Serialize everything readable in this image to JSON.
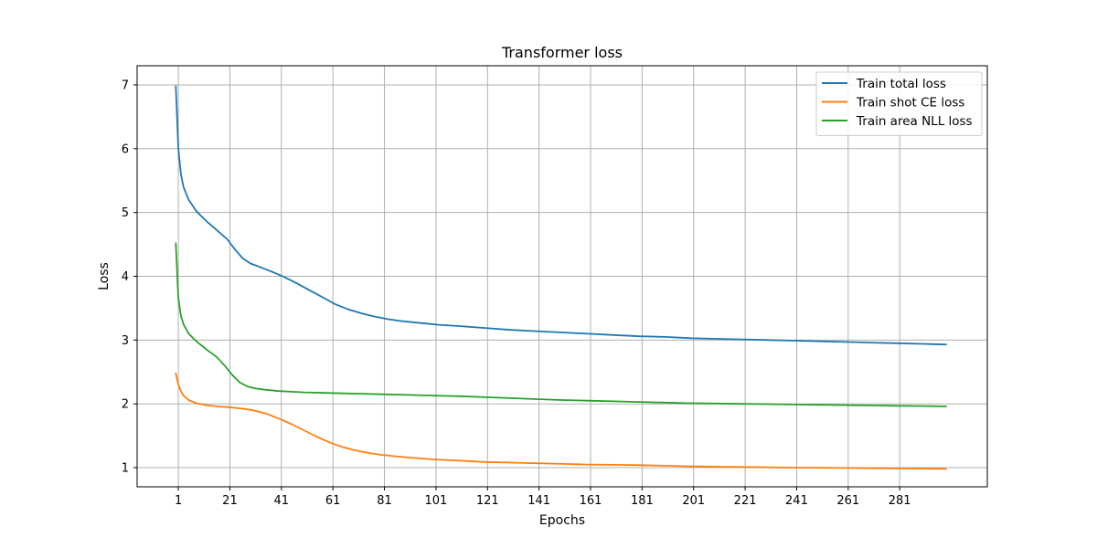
{
  "chart_data": {
    "type": "line",
    "title": "Transformer loss",
    "xlabel": "Epochs",
    "ylabel": "Loss",
    "xlim": [
      -15,
      315
    ],
    "ylim": [
      0.7,
      7.3
    ],
    "xticks": [
      1,
      21,
      41,
      61,
      81,
      101,
      121,
      141,
      161,
      181,
      201,
      221,
      241,
      261,
      281
    ],
    "yticks": [
      1,
      2,
      3,
      4,
      5,
      6,
      7
    ],
    "grid": true,
    "legend_position": "top-right",
    "series": [
      {
        "name": "Train total loss",
        "color": "#1f77b4",
        "x": [
          0,
          1,
          2,
          3,
          5,
          8,
          12,
          16,
          20,
          23,
          26,
          29,
          33,
          38,
          42,
          47,
          52,
          57,
          62,
          67,
          72,
          77,
          82,
          87,
          92,
          97,
          102,
          110,
          120,
          130,
          140,
          150,
          160,
          170,
          180,
          190,
          200,
          210,
          220,
          230,
          240,
          250,
          260,
          270,
          280,
          290,
          299
        ],
        "values": [
          6.98,
          6.0,
          5.6,
          5.4,
          5.2,
          5.02,
          4.86,
          4.72,
          4.58,
          4.42,
          4.28,
          4.2,
          4.14,
          4.06,
          3.99,
          3.89,
          3.78,
          3.67,
          3.56,
          3.48,
          3.42,
          3.37,
          3.33,
          3.3,
          3.28,
          3.26,
          3.24,
          3.22,
          3.19,
          3.16,
          3.14,
          3.12,
          3.1,
          3.08,
          3.06,
          3.05,
          3.03,
          3.02,
          3.01,
          3.0,
          2.99,
          2.98,
          2.97,
          2.96,
          2.95,
          2.94,
          2.93
        ]
      },
      {
        "name": "Train shot CE loss",
        "color": "#ff7f0e",
        "x": [
          0,
          1,
          2,
          3,
          5,
          8,
          12,
          16,
          20,
          25,
          30,
          35,
          40,
          45,
          50,
          55,
          60,
          65,
          70,
          75,
          80,
          85,
          90,
          95,
          100,
          110,
          120,
          130,
          140,
          150,
          160,
          170,
          180,
          190,
          200,
          210,
          220,
          230,
          240,
          250,
          260,
          270,
          280,
          290,
          299
        ],
        "values": [
          2.48,
          2.3,
          2.2,
          2.13,
          2.06,
          2.01,
          1.98,
          1.96,
          1.95,
          1.93,
          1.9,
          1.85,
          1.77,
          1.68,
          1.58,
          1.48,
          1.39,
          1.32,
          1.27,
          1.23,
          1.2,
          1.18,
          1.16,
          1.145,
          1.13,
          1.11,
          1.09,
          1.08,
          1.07,
          1.06,
          1.05,
          1.045,
          1.04,
          1.03,
          1.02,
          1.015,
          1.01,
          1.005,
          1.0,
          0.998,
          0.995,
          0.99,
          0.988,
          0.985,
          0.98
        ]
      },
      {
        "name": "Train area NLL loss",
        "color": "#2ca02c",
        "x": [
          0,
          1,
          2,
          3,
          5,
          8,
          12,
          16,
          19,
          22,
          25,
          28,
          31,
          35,
          40,
          45,
          50,
          60,
          70,
          80,
          90,
          100,
          110,
          120,
          130,
          140,
          150,
          160,
          170,
          180,
          190,
          200,
          210,
          220,
          230,
          240,
          250,
          260,
          270,
          280,
          290,
          299
        ],
        "values": [
          4.52,
          3.65,
          3.38,
          3.25,
          3.1,
          2.98,
          2.85,
          2.73,
          2.6,
          2.45,
          2.33,
          2.27,
          2.24,
          2.22,
          2.2,
          2.19,
          2.18,
          2.17,
          2.16,
          2.15,
          2.14,
          2.13,
          2.12,
          2.105,
          2.09,
          2.075,
          2.06,
          2.05,
          2.04,
          2.03,
          2.02,
          2.01,
          2.005,
          2.0,
          1.995,
          1.99,
          1.985,
          1.98,
          1.975,
          1.97,
          1.965,
          1.96
        ]
      }
    ]
  }
}
